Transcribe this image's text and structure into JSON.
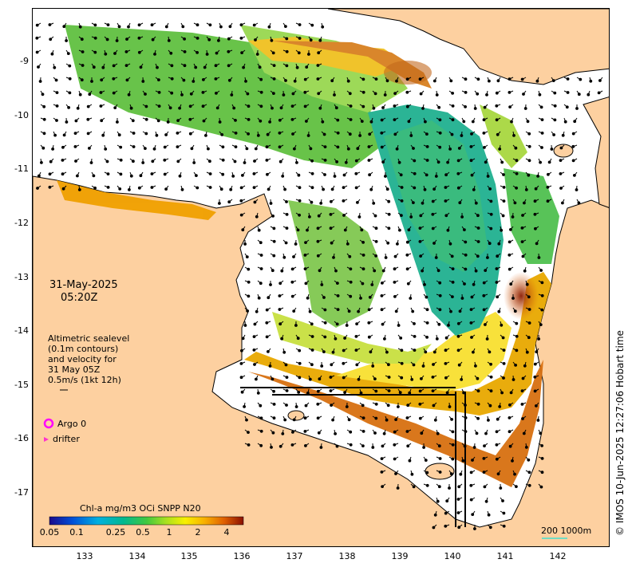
{
  "map": {
    "date": "31-May-2025",
    "time": "05:20Z",
    "legend_text": [
      "Altimetric sealevel",
      "(0.1m contours)",
      "and velocity for",
      "31 May 05Z",
      "0.5m/s (1kt 12h)"
    ],
    "argo_label": "Argo 0",
    "drifter_label": "drifter",
    "colorbar_title": "Chl-a mg/m3 OCi SNPP N20",
    "colorbar_ticks": [
      "0.05",
      "0.1",
      "0.25",
      "0.5",
      "1",
      "2",
      "4"
    ],
    "scale_label": "200  1000m",
    "credit": "© IMOS 10-Jun-2025 12:27:06 Hobart time",
    "lat_labels": [
      "-9",
      "-10",
      "-11",
      "-12",
      "-13",
      "-14",
      "-15",
      "-16",
      "-17"
    ],
    "lon_labels": [
      "133",
      "134",
      "135",
      "136",
      "137",
      "138",
      "139",
      "140",
      "141",
      "142"
    ],
    "colors": {
      "land": "#fdd0a0",
      "coast": "#000000",
      "argo": "#ff00ff",
      "drifter": "#ff33cc",
      "scale_line": "#40e0d0"
    }
  }
}
